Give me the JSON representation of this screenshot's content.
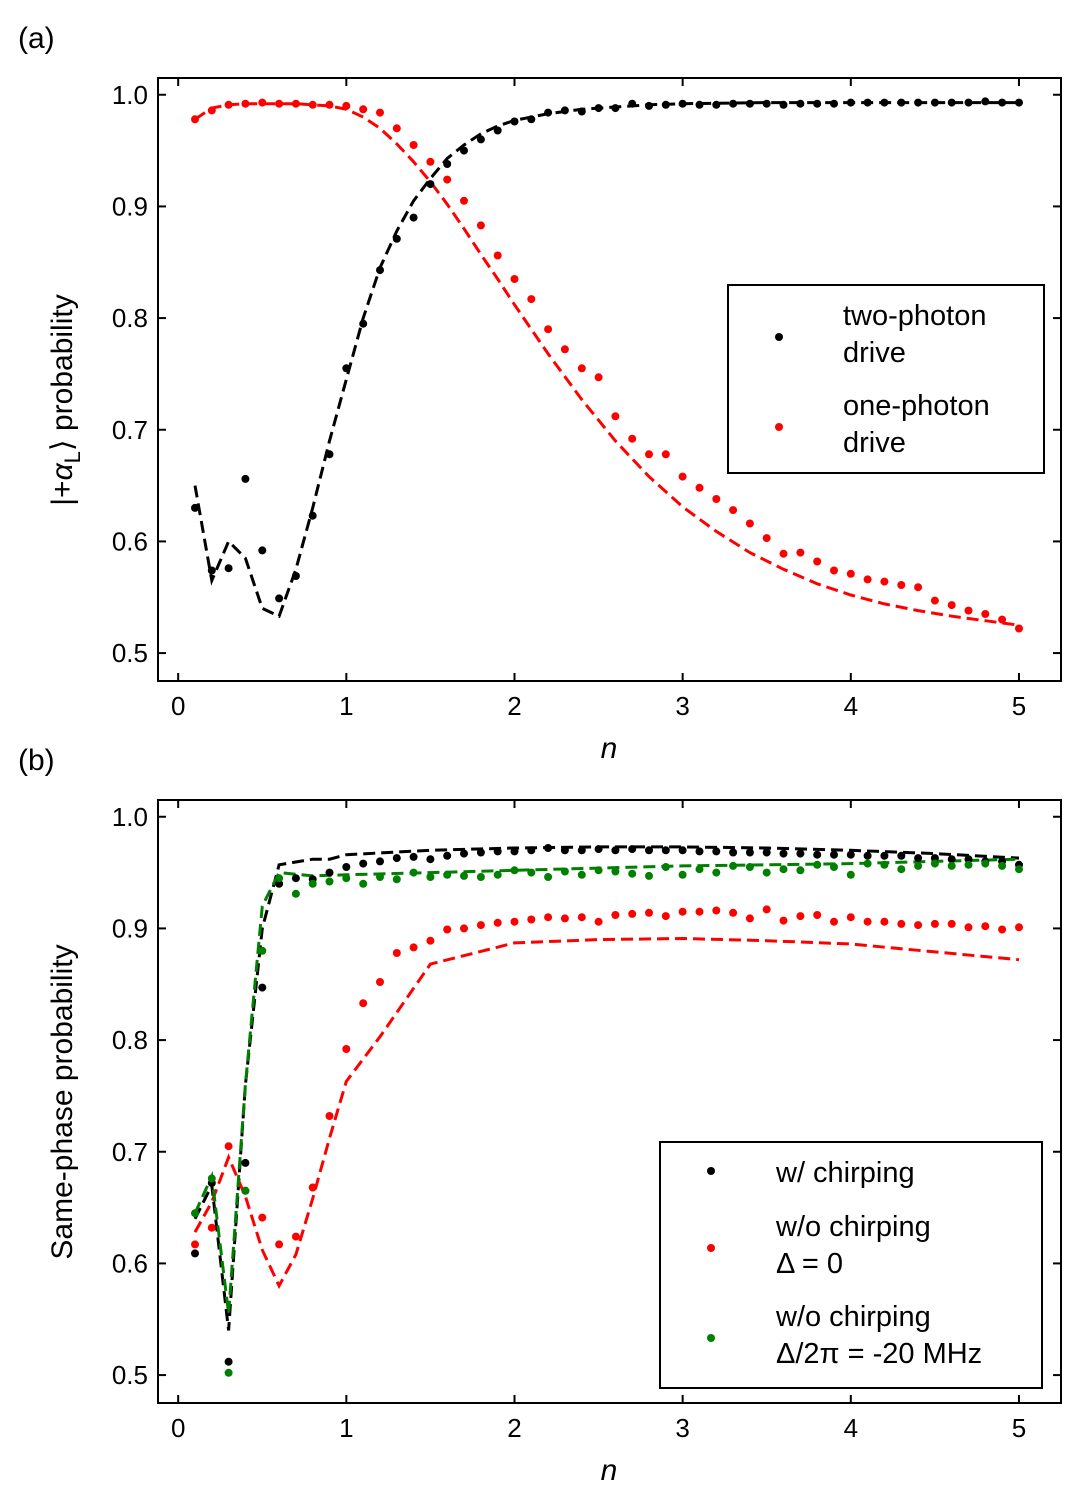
{
  "chart_data": [
    {
      "type": "scatter",
      "panel_label": "(a)",
      "xlabel": "n",
      "ylabel_prefix": "|+",
      "ylabel_symbol": "α",
      "ylabel_subscript": "L",
      "ylabel_suffix": "⟩ probability",
      "xlim": [
        -0.12,
        5.25
      ],
      "ylim": [
        0.475,
        1.015
      ],
      "xticks": [
        0,
        1,
        2,
        3,
        4,
        5
      ],
      "yticks": [
        0.5,
        0.6,
        0.7,
        0.8,
        0.9,
        1.0
      ],
      "xtick_labels": [
        "0",
        "1",
        "2",
        "3",
        "4",
        "5"
      ],
      "ytick_labels": [
        "0.5",
        "0.6",
        "0.7",
        "0.8",
        "0.9",
        "1.0"
      ],
      "legend_placement": "center-right",
      "series": [
        {
          "name_lines": [
            "two-photon",
            "drive"
          ],
          "color": "#000000",
          "x": [
            0.1,
            0.2,
            0.3,
            0.4,
            0.5,
            0.6,
            0.7,
            0.8,
            0.9,
            1.0,
            1.1,
            1.2,
            1.3,
            1.4,
            1.5,
            1.6,
            1.7,
            1.8,
            1.9,
            2.0,
            2.1,
            2.2,
            2.3,
            2.4,
            2.5,
            2.6,
            2.7,
            2.8,
            2.9,
            3.0,
            3.1,
            3.2,
            3.3,
            3.4,
            3.5,
            3.6,
            3.7,
            3.8,
            3.9,
            4.0,
            4.1,
            4.2,
            4.3,
            4.4,
            4.5,
            4.6,
            4.7,
            4.8,
            4.9,
            5.0
          ],
          "y": [
            0.63,
            0.574,
            0.576,
            0.656,
            0.592,
            0.549,
            0.569,
            0.623,
            0.678,
            0.755,
            0.795,
            0.843,
            0.871,
            0.89,
            0.92,
            0.938,
            0.95,
            0.96,
            0.968,
            0.976,
            0.978,
            0.984,
            0.986,
            0.985,
            0.988,
            0.988,
            0.992,
            0.99,
            0.991,
            0.992,
            0.991,
            0.991,
            0.992,
            0.992,
            0.992,
            0.991,
            0.992,
            0.992,
            0.992,
            0.993,
            0.993,
            0.993,
            0.993,
            0.993,
            0.993,
            0.993,
            0.993,
            0.994,
            0.993,
            0.993
          ],
          "fit_x": [
            0.1,
            0.2,
            0.3,
            0.4,
            0.5,
            0.6,
            0.7,
            0.8,
            0.9,
            1.0,
            1.1,
            1.2,
            1.3,
            1.4,
            1.5,
            1.6,
            1.7,
            1.8,
            1.9,
            2.0,
            2.2,
            2.4,
            2.6,
            2.8,
            3.0,
            3.5,
            4.0,
            4.5,
            5.0
          ],
          "fit_y": [
            0.65,
            0.565,
            0.6,
            0.585,
            0.54,
            0.533,
            0.575,
            0.63,
            0.69,
            0.745,
            0.8,
            0.845,
            0.878,
            0.905,
            0.925,
            0.943,
            0.955,
            0.965,
            0.972,
            0.977,
            0.983,
            0.987,
            0.989,
            0.991,
            0.992,
            0.993,
            0.993,
            0.993,
            0.993
          ]
        },
        {
          "name_lines": [
            "one-photon",
            "drive"
          ],
          "color": "#ff0000",
          "x": [
            0.1,
            0.2,
            0.3,
            0.4,
            0.5,
            0.6,
            0.7,
            0.8,
            0.9,
            1.0,
            1.1,
            1.2,
            1.3,
            1.4,
            1.5,
            1.6,
            1.7,
            1.8,
            1.9,
            2.0,
            2.1,
            2.2,
            2.3,
            2.4,
            2.5,
            2.6,
            2.7,
            2.8,
            2.9,
            3.0,
            3.1,
            3.2,
            3.3,
            3.4,
            3.5,
            3.6,
            3.7,
            3.8,
            3.9,
            4.0,
            4.1,
            4.2,
            4.3,
            4.4,
            4.5,
            4.6,
            4.7,
            4.8,
            4.9,
            5.0
          ],
          "y": [
            0.978,
            0.986,
            0.991,
            0.992,
            0.993,
            0.992,
            0.992,
            0.991,
            0.991,
            0.99,
            0.987,
            0.984,
            0.97,
            0.955,
            0.94,
            0.924,
            0.905,
            0.883,
            0.856,
            0.835,
            0.817,
            0.79,
            0.772,
            0.755,
            0.747,
            0.712,
            0.692,
            0.678,
            0.678,
            0.658,
            0.648,
            0.638,
            0.628,
            0.616,
            0.603,
            0.589,
            0.59,
            0.582,
            0.574,
            0.571,
            0.566,
            0.564,
            0.561,
            0.559,
            0.547,
            0.543,
            0.538,
            0.535,
            0.53,
            0.522
          ],
          "fit_x": [
            0.1,
            0.2,
            0.3,
            0.4,
            0.5,
            0.6,
            0.7,
            0.8,
            0.9,
            1.0,
            1.1,
            1.2,
            1.3,
            1.4,
            1.5,
            1.6,
            1.7,
            1.8,
            1.9,
            2.0,
            2.2,
            2.4,
            2.6,
            2.8,
            3.0,
            3.2,
            3.4,
            3.6,
            3.8,
            4.0,
            4.2,
            4.4,
            4.6,
            4.8,
            5.0
          ],
          "fit_y": [
            0.978,
            0.988,
            0.991,
            0.992,
            0.992,
            0.992,
            0.992,
            0.991,
            0.99,
            0.987,
            0.98,
            0.97,
            0.956,
            0.94,
            0.922,
            0.902,
            0.88,
            0.857,
            0.835,
            0.812,
            0.768,
            0.727,
            0.69,
            0.658,
            0.631,
            0.609,
            0.59,
            0.575,
            0.562,
            0.552,
            0.544,
            0.538,
            0.533,
            0.529,
            0.525
          ]
        }
      ]
    },
    {
      "type": "scatter",
      "panel_label": "(b)",
      "xlabel": "n",
      "ylabel": "Same-phase probability",
      "xlim": [
        -0.12,
        5.25
      ],
      "ylim": [
        0.475,
        1.015
      ],
      "xticks": [
        0,
        1,
        2,
        3,
        4,
        5
      ],
      "yticks": [
        0.5,
        0.6,
        0.7,
        0.8,
        0.9,
        1.0
      ],
      "xtick_labels": [
        "0",
        "1",
        "2",
        "3",
        "4",
        "5"
      ],
      "ytick_labels": [
        "0.5",
        "0.6",
        "0.7",
        "0.8",
        "0.9",
        "1.0"
      ],
      "legend_placement": "lower-right",
      "series": [
        {
          "name_lines": [
            "w/ chirping"
          ],
          "color": "#000000",
          "x": [
            0.1,
            0.2,
            0.3,
            0.4,
            0.5,
            0.6,
            0.7,
            0.8,
            0.9,
            1.0,
            1.1,
            1.2,
            1.3,
            1.4,
            1.5,
            1.6,
            1.7,
            1.8,
            1.9,
            2.0,
            2.1,
            2.2,
            2.3,
            2.4,
            2.5,
            2.6,
            2.7,
            2.8,
            2.9,
            3.0,
            3.1,
            3.2,
            3.3,
            3.4,
            3.5,
            3.6,
            3.7,
            3.8,
            3.9,
            4.0,
            4.1,
            4.2,
            4.3,
            4.4,
            4.5,
            4.6,
            4.7,
            4.8,
            4.9,
            5.0
          ],
          "y": [
            0.609,
            0.672,
            0.512,
            0.69,
            0.847,
            0.94,
            0.945,
            0.944,
            0.95,
            0.955,
            0.958,
            0.96,
            0.963,
            0.964,
            0.962,
            0.965,
            0.967,
            0.968,
            0.969,
            0.969,
            0.97,
            0.972,
            0.97,
            0.97,
            0.971,
            0.97,
            0.971,
            0.97,
            0.97,
            0.97,
            0.969,
            0.969,
            0.968,
            0.968,
            0.968,
            0.967,
            0.967,
            0.966,
            0.966,
            0.966,
            0.965,
            0.965,
            0.965,
            0.963,
            0.963,
            0.962,
            0.962,
            0.96,
            0.96,
            0.957
          ],
          "fit_x": [
            0.1,
            0.2,
            0.3,
            0.4,
            0.5,
            0.6,
            0.8,
            0.9,
            1.0,
            1.5,
            2.0,
            2.5,
            3.0,
            3.5,
            4.0,
            4.5,
            5.0
          ],
          "fit_y": [
            0.64,
            0.67,
            0.54,
            0.76,
            0.9,
            0.957,
            0.962,
            0.962,
            0.966,
            0.97,
            0.972,
            0.973,
            0.973,
            0.972,
            0.97,
            0.967,
            0.963
          ]
        },
        {
          "name_lines": [
            "w/o chirping",
            "Δ = 0"
          ],
          "color": "#ff0000",
          "x": [
            0.1,
            0.2,
            0.3,
            0.4,
            0.5,
            0.6,
            0.7,
            0.8,
            0.9,
            1.0,
            1.1,
            1.2,
            1.3,
            1.4,
            1.5,
            1.6,
            1.7,
            1.8,
            1.9,
            2.0,
            2.1,
            2.2,
            2.3,
            2.4,
            2.5,
            2.6,
            2.7,
            2.8,
            2.9,
            3.0,
            3.1,
            3.2,
            3.3,
            3.4,
            3.5,
            3.6,
            3.7,
            3.8,
            3.9,
            4.0,
            4.1,
            4.2,
            4.3,
            4.4,
            4.5,
            4.6,
            4.7,
            4.8,
            4.9,
            5.0
          ],
          "y": [
            0.617,
            0.632,
            0.705,
            0.665,
            0.641,
            0.617,
            0.624,
            0.668,
            0.732,
            0.792,
            0.833,
            0.852,
            0.878,
            0.883,
            0.889,
            0.899,
            0.9,
            0.903,
            0.905,
            0.906,
            0.908,
            0.91,
            0.909,
            0.91,
            0.906,
            0.912,
            0.913,
            0.914,
            0.911,
            0.915,
            0.915,
            0.916,
            0.914,
            0.909,
            0.917,
            0.907,
            0.911,
            0.912,
            0.906,
            0.91,
            0.906,
            0.906,
            0.904,
            0.903,
            0.904,
            0.904,
            0.901,
            0.902,
            0.899,
            0.901
          ],
          "fit_x": [
            0.1,
            0.2,
            0.3,
            0.4,
            0.5,
            0.6,
            0.7,
            0.8,
            0.9,
            1.0,
            1.2,
            1.5,
            2.0,
            2.5,
            3.0,
            3.5,
            4.0,
            4.5,
            5.0
          ],
          "fit_y": [
            0.628,
            0.655,
            0.695,
            0.66,
            0.612,
            0.58,
            0.608,
            0.658,
            0.712,
            0.763,
            0.803,
            0.868,
            0.887,
            0.89,
            0.891,
            0.889,
            0.886,
            0.879,
            0.872
          ]
        },
        {
          "name_lines": [
            "w/o chirping",
            "Δ/2π = -20 MHz"
          ],
          "color": "#008000",
          "x": [
            0.1,
            0.2,
            0.3,
            0.4,
            0.5,
            0.6,
            0.7,
            0.8,
            0.9,
            1.0,
            1.1,
            1.2,
            1.3,
            1.4,
            1.5,
            1.6,
            1.7,
            1.8,
            1.9,
            2.0,
            2.1,
            2.2,
            2.3,
            2.4,
            2.5,
            2.6,
            2.7,
            2.8,
            2.9,
            3.0,
            3.1,
            3.2,
            3.3,
            3.4,
            3.5,
            3.6,
            3.7,
            3.8,
            3.9,
            4.0,
            4.1,
            4.2,
            4.3,
            4.4,
            4.5,
            4.6,
            4.7,
            4.8,
            4.9,
            5.0
          ],
          "y": [
            0.645,
            0.676,
            0.502,
            0.665,
            0.88,
            0.945,
            0.931,
            0.94,
            0.942,
            0.945,
            0.94,
            0.946,
            0.944,
            0.95,
            0.946,
            0.948,
            0.947,
            0.946,
            0.948,
            0.952,
            0.95,
            0.946,
            0.951,
            0.948,
            0.952,
            0.951,
            0.949,
            0.947,
            0.955,
            0.948,
            0.953,
            0.95,
            0.956,
            0.955,
            0.95,
            0.953,
            0.952,
            0.957,
            0.955,
            0.948,
            0.958,
            0.957,
            0.953,
            0.956,
            0.958,
            0.956,
            0.957,
            0.958,
            0.956,
            0.953
          ],
          "fit_x": [
            0.1,
            0.2,
            0.3,
            0.4,
            0.5,
            0.6,
            0.8,
            1.0,
            1.5,
            2.0,
            2.5,
            3.0,
            3.5,
            4.0,
            4.5,
            5.0
          ],
          "fit_y": [
            0.645,
            0.678,
            0.555,
            0.76,
            0.92,
            0.95,
            0.947,
            0.948,
            0.95,
            0.952,
            0.954,
            0.956,
            0.957,
            0.958,
            0.96,
            0.962
          ]
        }
      ]
    }
  ]
}
